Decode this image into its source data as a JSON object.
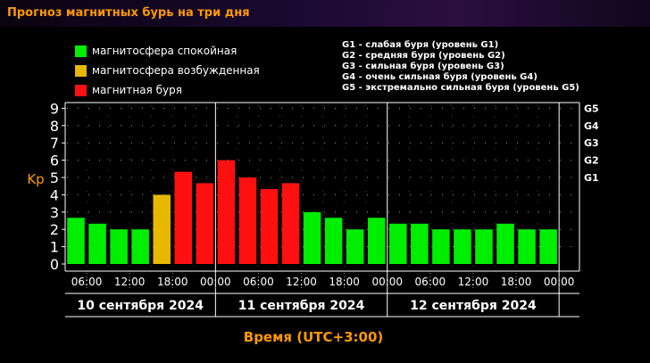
{
  "page": {
    "title": "Прогноз магнитных бурь на три дня"
  },
  "legend": [
    {
      "label": "магнитосфера спокойная",
      "color": "#00ee00"
    },
    {
      "label": "магнитосфера возбужденная",
      "color": "#e6b800"
    },
    {
      "label": "магнитная буря",
      "color": "#ff1010"
    }
  ],
  "g_legend": [
    "G1 - слабая буря (уровень G1)",
    "G2 - средняя буря (уровень G2)",
    "G3 - сильная буря (уровень G3)",
    "G4 - очень сильная буря (уровень G4)",
    "G5 - экстремально сильная буря (уровень G5)"
  ],
  "chart_data": {
    "type": "bar",
    "ylabel": "Kp",
    "xlabel": "Время (UTC+3:00)",
    "ylim": [
      0,
      9.5
    ],
    "yticks": [
      0,
      1,
      2,
      3,
      4,
      5,
      6,
      7,
      8,
      9
    ],
    "g_levels": [
      {
        "label": "G1",
        "kp": 5
      },
      {
        "label": "G2",
        "kp": 6
      },
      {
        "label": "G3",
        "kp": 7
      },
      {
        "label": "G4",
        "kp": 8
      },
      {
        "label": "G5",
        "kp": 9
      }
    ],
    "time_ticks": [
      "06:00",
      "12:00",
      "18:00",
      "00:00",
      "06:00",
      "12:00",
      "18:00",
      "00:00",
      "06:00",
      "12:00",
      "18:00",
      "00:00"
    ],
    "days": [
      "10 сентября 2024",
      "11 сентября 2024",
      "12 сентября 2024"
    ],
    "values": [
      2.67,
      2.33,
      2.0,
      2.0,
      4.0,
      5.33,
      4.67,
      6.0,
      5.0,
      4.33,
      4.67,
      3.0,
      2.67,
      2.0,
      2.67,
      2.33,
      2.33,
      2.0,
      2.0,
      2.0,
      2.33,
      2.0,
      2.0
    ],
    "levels": [
      "calm",
      "calm",
      "calm",
      "calm",
      "active",
      "storm",
      "storm",
      "storm",
      "storm",
      "storm",
      "storm",
      "calm",
      "calm",
      "calm",
      "calm",
      "calm",
      "calm",
      "calm",
      "calm",
      "calm",
      "calm",
      "calm",
      "calm"
    ],
    "colors": {
      "calm": "#00ee00",
      "active": "#e6b800",
      "storm": "#ff1010"
    },
    "grid": true
  }
}
